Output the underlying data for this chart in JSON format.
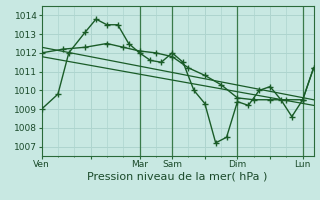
{
  "background_color": "#c8e8e2",
  "plot_bg_color": "#c8e8e2",
  "grid_color": "#aed4ce",
  "line_color": "#1a5c28",
  "xlabel": "Pression niveau de la mer( hPa )",
  "xlabel_fontsize": 8,
  "ylim": [
    1006.5,
    1014.5
  ],
  "yticks": [
    1007,
    1008,
    1009,
    1010,
    1011,
    1012,
    1013,
    1014
  ],
  "xtick_labels": [
    "Ven",
    "",
    "Mar",
    "Sam",
    "",
    "Dim",
    "",
    "Lun"
  ],
  "xtick_positions": [
    0,
    18,
    36,
    48,
    60,
    72,
    84,
    96
  ],
  "day_lines": [
    36,
    48,
    72,
    96
  ],
  "xlim": [
    0,
    100
  ],
  "series_jagged_x": [
    0,
    6,
    10,
    16,
    20,
    24,
    28,
    32,
    36,
    40,
    44,
    48,
    52,
    56,
    60,
    64,
    68,
    72,
    76,
    80,
    84,
    88,
    92,
    96,
    100
  ],
  "series_jagged_y": [
    1009.0,
    1009.8,
    1012.0,
    1013.1,
    1013.8,
    1013.5,
    1013.5,
    1012.5,
    1012.0,
    1011.6,
    1011.5,
    1012.0,
    1011.5,
    1010.0,
    1009.3,
    1007.2,
    1007.5,
    1009.4,
    1009.2,
    1010.0,
    1010.2,
    1009.5,
    1008.6,
    1009.5,
    1011.2
  ],
  "series_smooth_x": [
    0,
    8,
    16,
    24,
    30,
    36,
    42,
    48,
    54,
    60,
    66,
    72,
    78,
    84,
    90,
    96,
    100
  ],
  "series_smooth_y": [
    1012.0,
    1012.2,
    1012.3,
    1012.5,
    1012.3,
    1012.1,
    1012.0,
    1011.8,
    1011.2,
    1010.8,
    1010.3,
    1009.6,
    1009.5,
    1009.5,
    1009.5,
    1009.5,
    1011.2
  ],
  "trend1_x": [
    0,
    100
  ],
  "trend1_y": [
    1012.3,
    1009.5
  ],
  "trend2_x": [
    0,
    100
  ],
  "trend2_y": [
    1011.8,
    1009.2
  ]
}
